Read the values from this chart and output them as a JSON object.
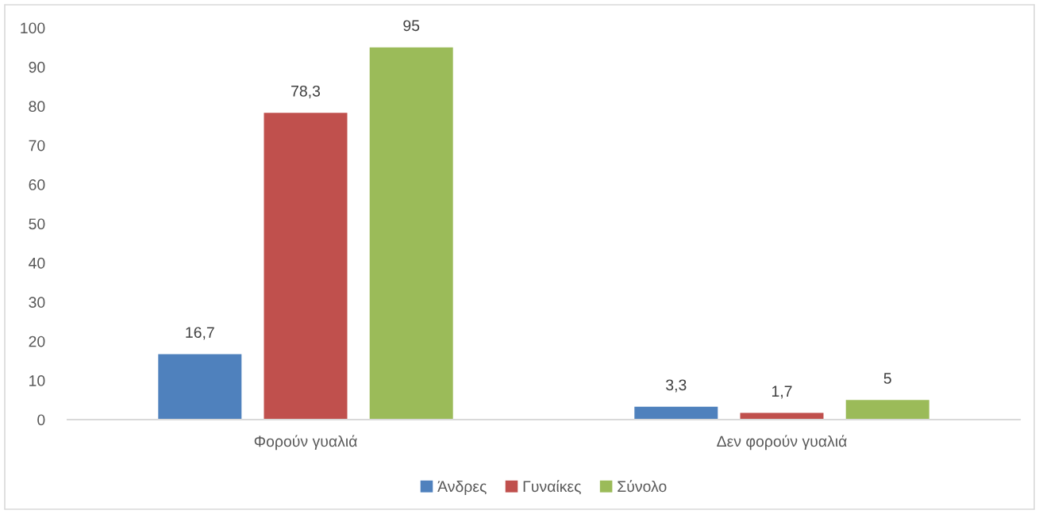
{
  "chart_data": {
    "type": "bar",
    "categories": [
      "Φορούν γυαλιά",
      "Δεν φορούν γυαλιά"
    ],
    "series": [
      {
        "name": "Άνδρες",
        "color": "#4f81bd",
        "values": [
          16.7,
          3.3
        ],
        "value_labels": [
          "16,7",
          "3,3"
        ]
      },
      {
        "name": "Γυναίκες",
        "color": "#c0504d",
        "values": [
          78.3,
          1.7
        ],
        "value_labels": [
          "78,3",
          "1,7"
        ]
      },
      {
        "name": "Σύνολο",
        "color": "#9bbb59",
        "values": [
          95,
          5
        ],
        "value_labels": [
          "95",
          "5"
        ]
      }
    ],
    "ylim": [
      0,
      100
    ],
    "yticks": [
      0,
      10,
      20,
      30,
      40,
      50,
      60,
      70,
      80,
      90,
      100
    ],
    "grid": false,
    "legend": "bottom"
  }
}
